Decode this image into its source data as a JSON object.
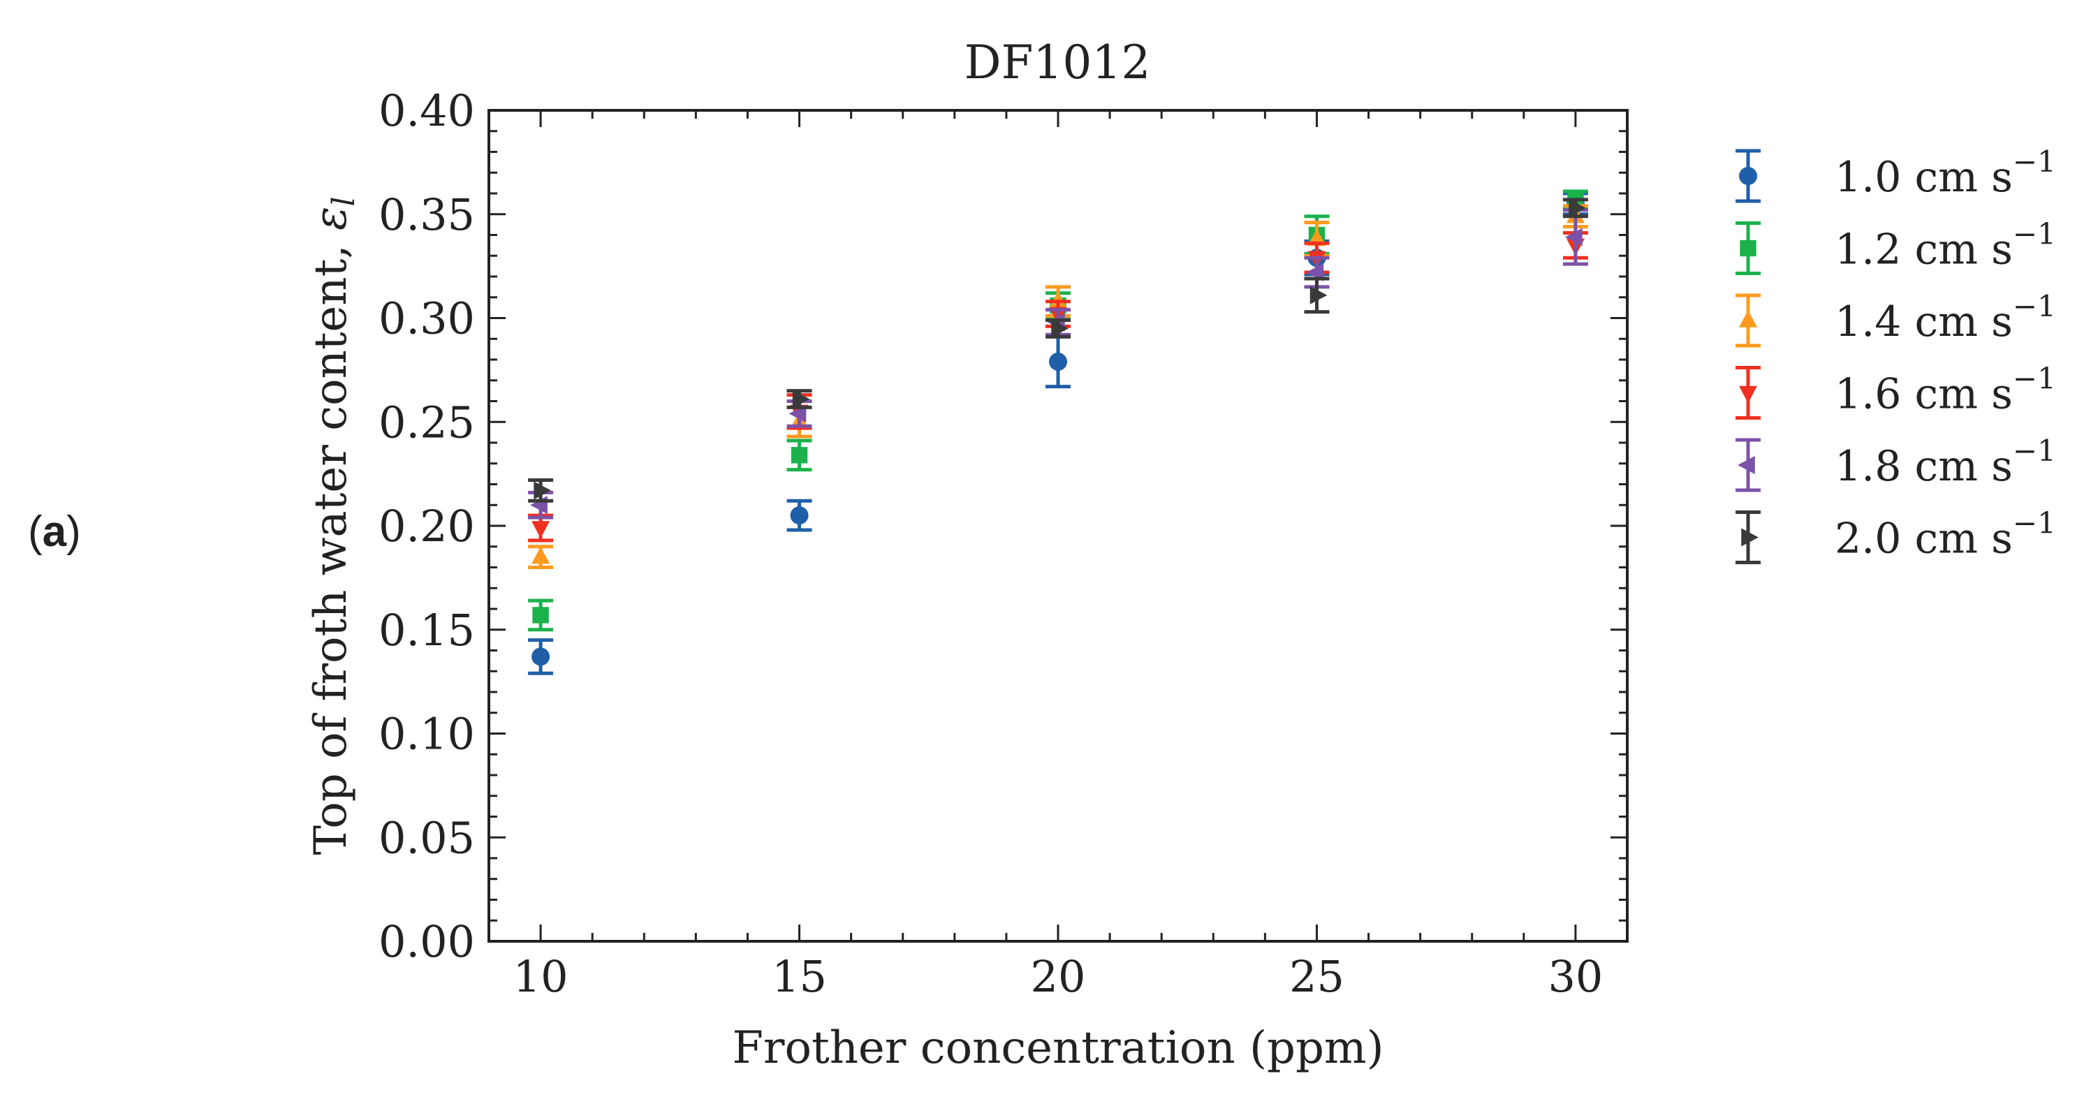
{
  "panel_label_open": "(",
  "panel_label_letter": "a",
  "panel_label_close": ")",
  "chart_data": {
    "type": "scatter",
    "title": "DF1012",
    "xlabel": "Frother concentration (ppm)",
    "ylabel": "Top of froth water content, ",
    "ylabel_symbol": "ε",
    "ylabel_subscript": "l",
    "xlim": [
      9,
      31
    ],
    "ylim": [
      0,
      0.4
    ],
    "xticks": [
      10,
      15,
      20,
      25,
      30
    ],
    "xtick_labels": [
      "10",
      "15",
      "20",
      "25",
      "30"
    ],
    "yticks": [
      0,
      0.05,
      0.1,
      0.15,
      0.2,
      0.25,
      0.3,
      0.35,
      0.4
    ],
    "ytick_labels": [
      "0.00",
      "0.05",
      "0.10",
      "0.15",
      "0.20",
      "0.25",
      "0.30",
      "0.35",
      "0.40"
    ],
    "grid": false,
    "legend_position": "outside-right",
    "x": [
      10,
      15,
      20,
      25,
      30
    ],
    "series": [
      {
        "name": "1.0 cm s",
        "label_value": "1.0",
        "unit": "cm s",
        "exponent": "−1",
        "color": "#1f5fa8",
        "marker": "circle",
        "values": [
          0.137,
          0.205,
          0.279,
          0.329,
          0.355
        ],
        "errors": [
          0.008,
          0.007,
          0.012,
          0.008,
          0.005
        ]
      },
      {
        "name": "1.2 cm s",
        "label_value": "1.2",
        "unit": "cm s",
        "exponent": "−1",
        "color": "#1bb24b",
        "marker": "square",
        "values": [
          0.157,
          0.234,
          0.306,
          0.34,
          0.357
        ],
        "errors": [
          0.007,
          0.007,
          0.006,
          0.009,
          0.004
        ]
      },
      {
        "name": "1.4 cm s",
        "label_value": "1.4",
        "unit": "cm s",
        "exponent": "−1",
        "color": "#ff9a1f",
        "marker": "triangle-up",
        "values": [
          0.185,
          0.25,
          0.308,
          0.338,
          0.349
        ],
        "errors": [
          0.005,
          0.007,
          0.007,
          0.008,
          0.005
        ]
      },
      {
        "name": "1.6 cm s",
        "label_value": "1.6",
        "unit": "cm s",
        "exponent": "−1",
        "color": "#f03020",
        "marker": "triangle-down",
        "values": [
          0.199,
          0.255,
          0.302,
          0.329,
          0.335
        ],
        "errors": [
          0.006,
          0.008,
          0.006,
          0.007,
          0.006
        ]
      },
      {
        "name": "1.8 cm s",
        "label_value": "1.8",
        "unit": "cm s",
        "exponent": "−1",
        "color": "#7b52a8",
        "marker": "triangle-left",
        "values": [
          0.21,
          0.254,
          0.298,
          0.322,
          0.339
        ],
        "errors": [
          0.006,
          0.006,
          0.006,
          0.007,
          0.013
        ]
      },
      {
        "name": "2.0 cm s",
        "label_value": "2.0",
        "unit": "cm s",
        "exponent": "−1",
        "color": "#3a3a3a",
        "marker": "triangle-right",
        "values": [
          0.217,
          0.261,
          0.295,
          0.311,
          0.353
        ],
        "errors": [
          0.005,
          0.004,
          0.004,
          0.008,
          0.004
        ]
      }
    ]
  }
}
